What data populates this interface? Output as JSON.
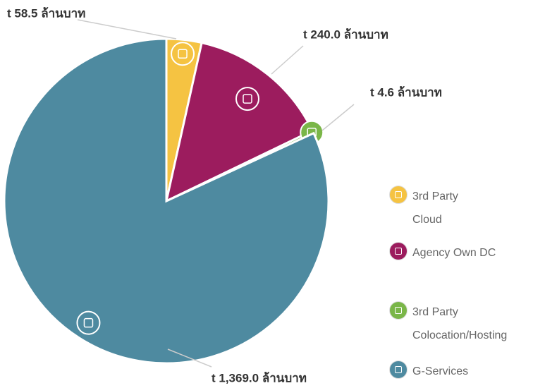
{
  "chart_data": {
    "type": "pie",
    "series": [
      {
        "name": "3rd Party Cloud",
        "color": "#f5c342",
        "values": [
          58.5
        ],
        "value_labels": [
          "t 58.5 ล้านบาท"
        ]
      },
      {
        "name": "Agency Own DC",
        "color": "#9c1c5e",
        "values": [
          240.0
        ],
        "value_labels": [
          "t 240.0 ล้านบาท"
        ]
      },
      {
        "name": "3rd Party Colocation/Hosting",
        "color": "#7ab648",
        "values": [
          4.6
        ],
        "value_labels": [
          "t 4.6 ล้านบาท"
        ]
      },
      {
        "name": "G-Services",
        "color": "#4e8aa0",
        "values": [
          1369.0
        ],
        "value_labels": [
          "t 1,369.0 ล้านบาท"
        ]
      }
    ]
  }
}
